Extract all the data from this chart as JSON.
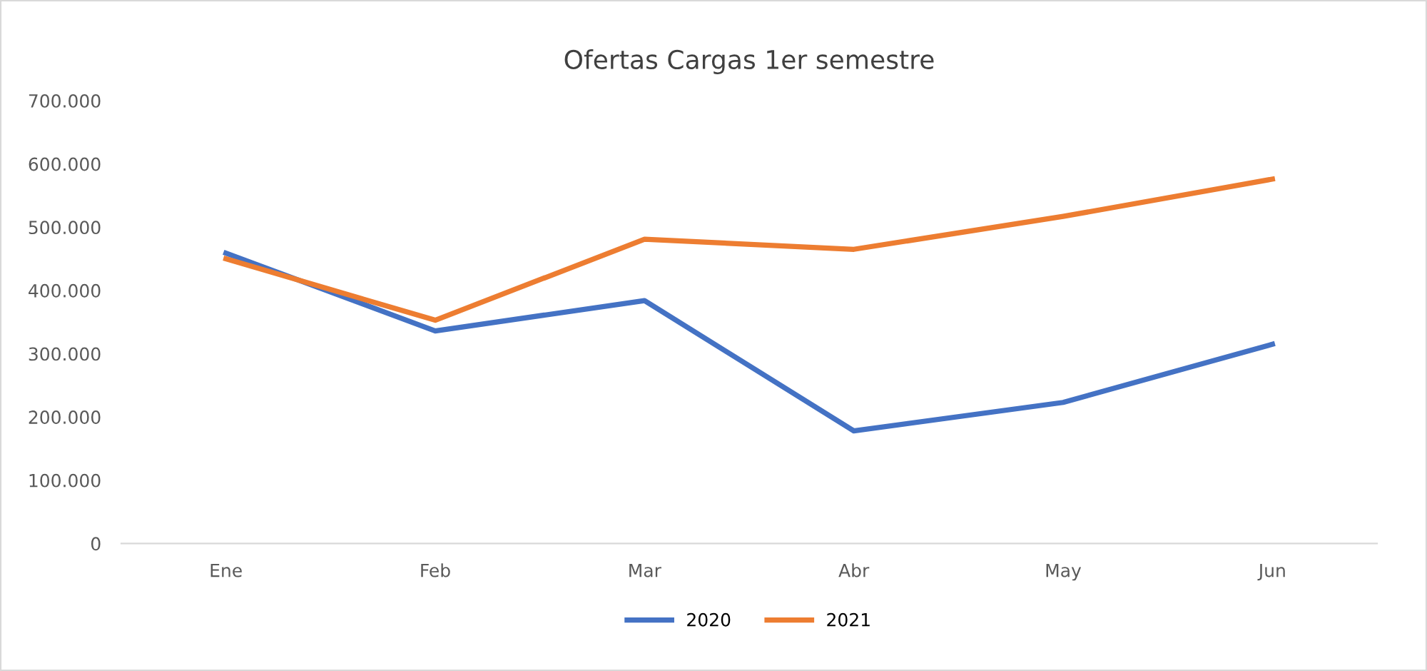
{
  "chart_data": {
    "type": "line",
    "title": "Ofertas Cargas 1er semestre",
    "categories": [
      "Ene",
      "Feb",
      "Mar",
      "Abr",
      "May",
      "Jun"
    ],
    "series": [
      {
        "name": "2020",
        "color": "#4472c4",
        "values": [
          459000,
          336000,
          384000,
          178000,
          223000,
          315000
        ]
      },
      {
        "name": "2021",
        "color": "#ed7d31",
        "values": [
          450000,
          353000,
          481000,
          465000,
          517000,
          576000
        ]
      }
    ],
    "ylim": [
      0,
      700000
    ],
    "yticks": [
      {
        "value": 0,
        "label": "0"
      },
      {
        "value": 100000,
        "label": "100.000"
      },
      {
        "value": 200000,
        "label": "200.000"
      },
      {
        "value": 300000,
        "label": "300.000"
      },
      {
        "value": 400000,
        "label": "400.000"
      },
      {
        "value": 500000,
        "label": "500.000"
      },
      {
        "value": 600000,
        "label": "600.000"
      },
      {
        "value": 700000,
        "label": "700.000"
      }
    ],
    "grid": false,
    "legend": "bottom",
    "marker": "none",
    "line_style": "solid"
  }
}
